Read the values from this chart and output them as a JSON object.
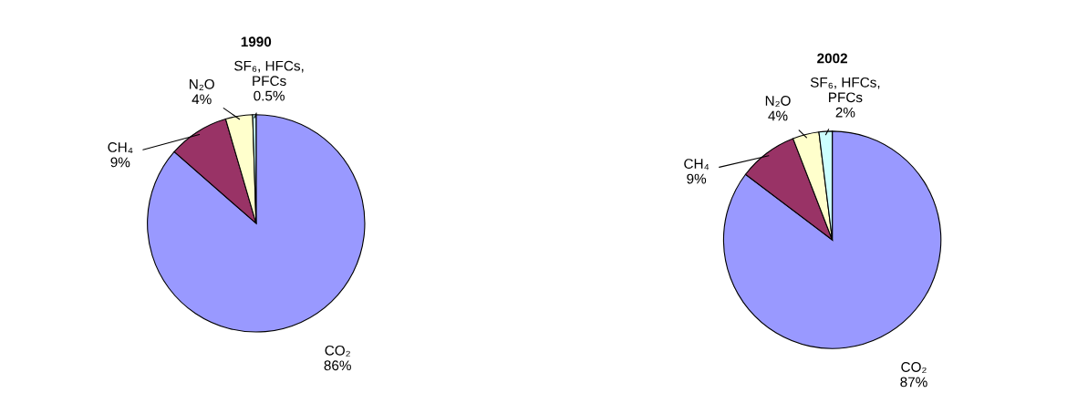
{
  "chart_data": [
    {
      "type": "pie",
      "title": "1990",
      "categories": [
        "CO₂",
        "CH₄",
        "N₂O",
        "SF₆, HFCs,\nPFCs"
      ],
      "values": [
        86,
        9,
        4,
        0.5
      ],
      "value_labels": [
        "86%",
        "9%",
        "4%",
        "0.5%"
      ],
      "colors": [
        "#9999ff",
        "#993366",
        "#ffffcc",
        "#ccffff"
      ]
    },
    {
      "type": "pie",
      "title": "2002",
      "categories": [
        "CO₂",
        "CH₄",
        "N₂O",
        "SF₆, HFCs,\nPFCs"
      ],
      "values": [
        87,
        9,
        4,
        2
      ],
      "value_labels": [
        "87%",
        "9%",
        "4%",
        "2%"
      ],
      "colors": [
        "#9999ff",
        "#993366",
        "#ffffcc",
        "#ccffff"
      ]
    }
  ]
}
